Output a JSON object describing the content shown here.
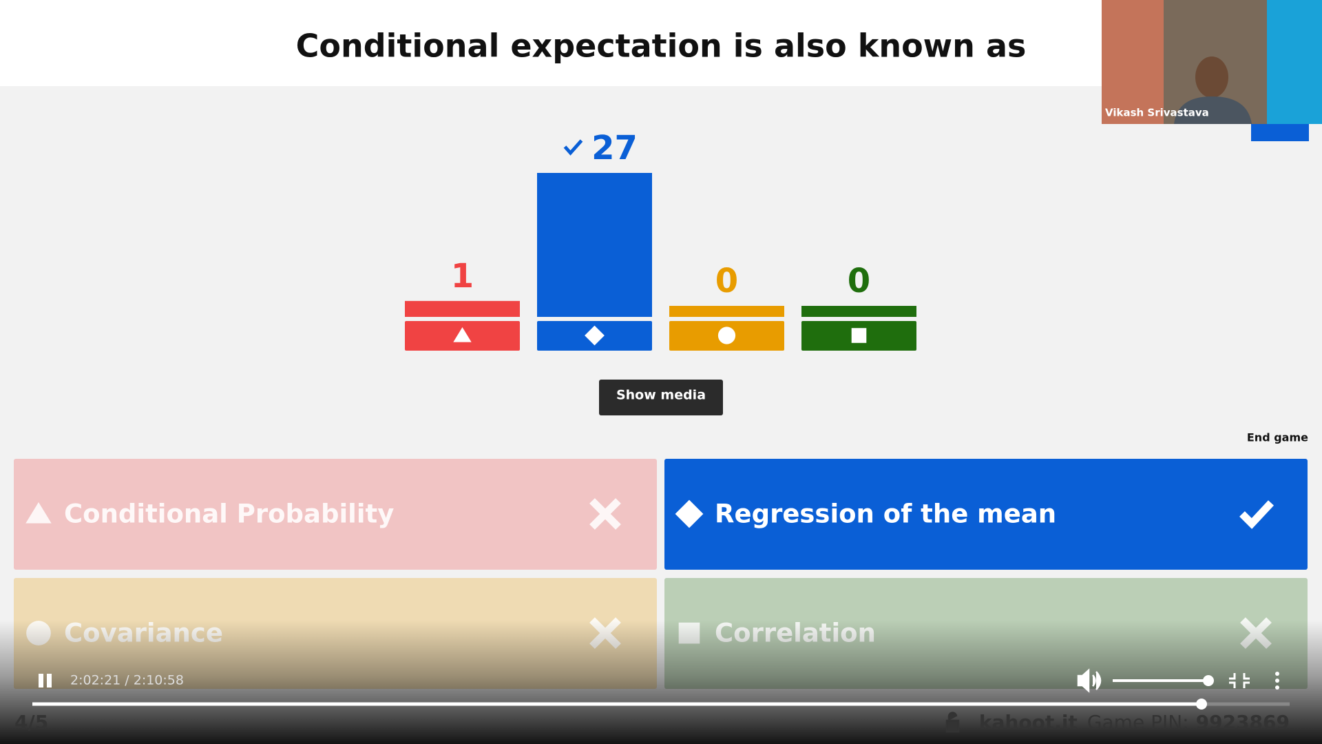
{
  "question": "Conditional expectation is also known as",
  "presenter": "Vikash Srivastava",
  "chart_data": {
    "type": "bar",
    "values": [
      1,
      27,
      0,
      0
    ],
    "colors": [
      "#f04343",
      "#0a5fd6",
      "#e89c00",
      "#1f6e0d"
    ],
    "correct_index": 1
  },
  "show_media": "Show media",
  "end_game": "End game",
  "answers": [
    {
      "text": "Conditional Probability",
      "correct": false
    },
    {
      "text": "Regression of the mean",
      "correct": true
    },
    {
      "text": "Covariance",
      "correct": false
    },
    {
      "text": "Correlation",
      "correct": false
    }
  ],
  "player": {
    "time": "2:02:21 / 2:10:58"
  },
  "footer": {
    "progress": "4/5",
    "site": "kahoot.it",
    "pin_label": "Game PIN:",
    "pin": "9923869"
  }
}
